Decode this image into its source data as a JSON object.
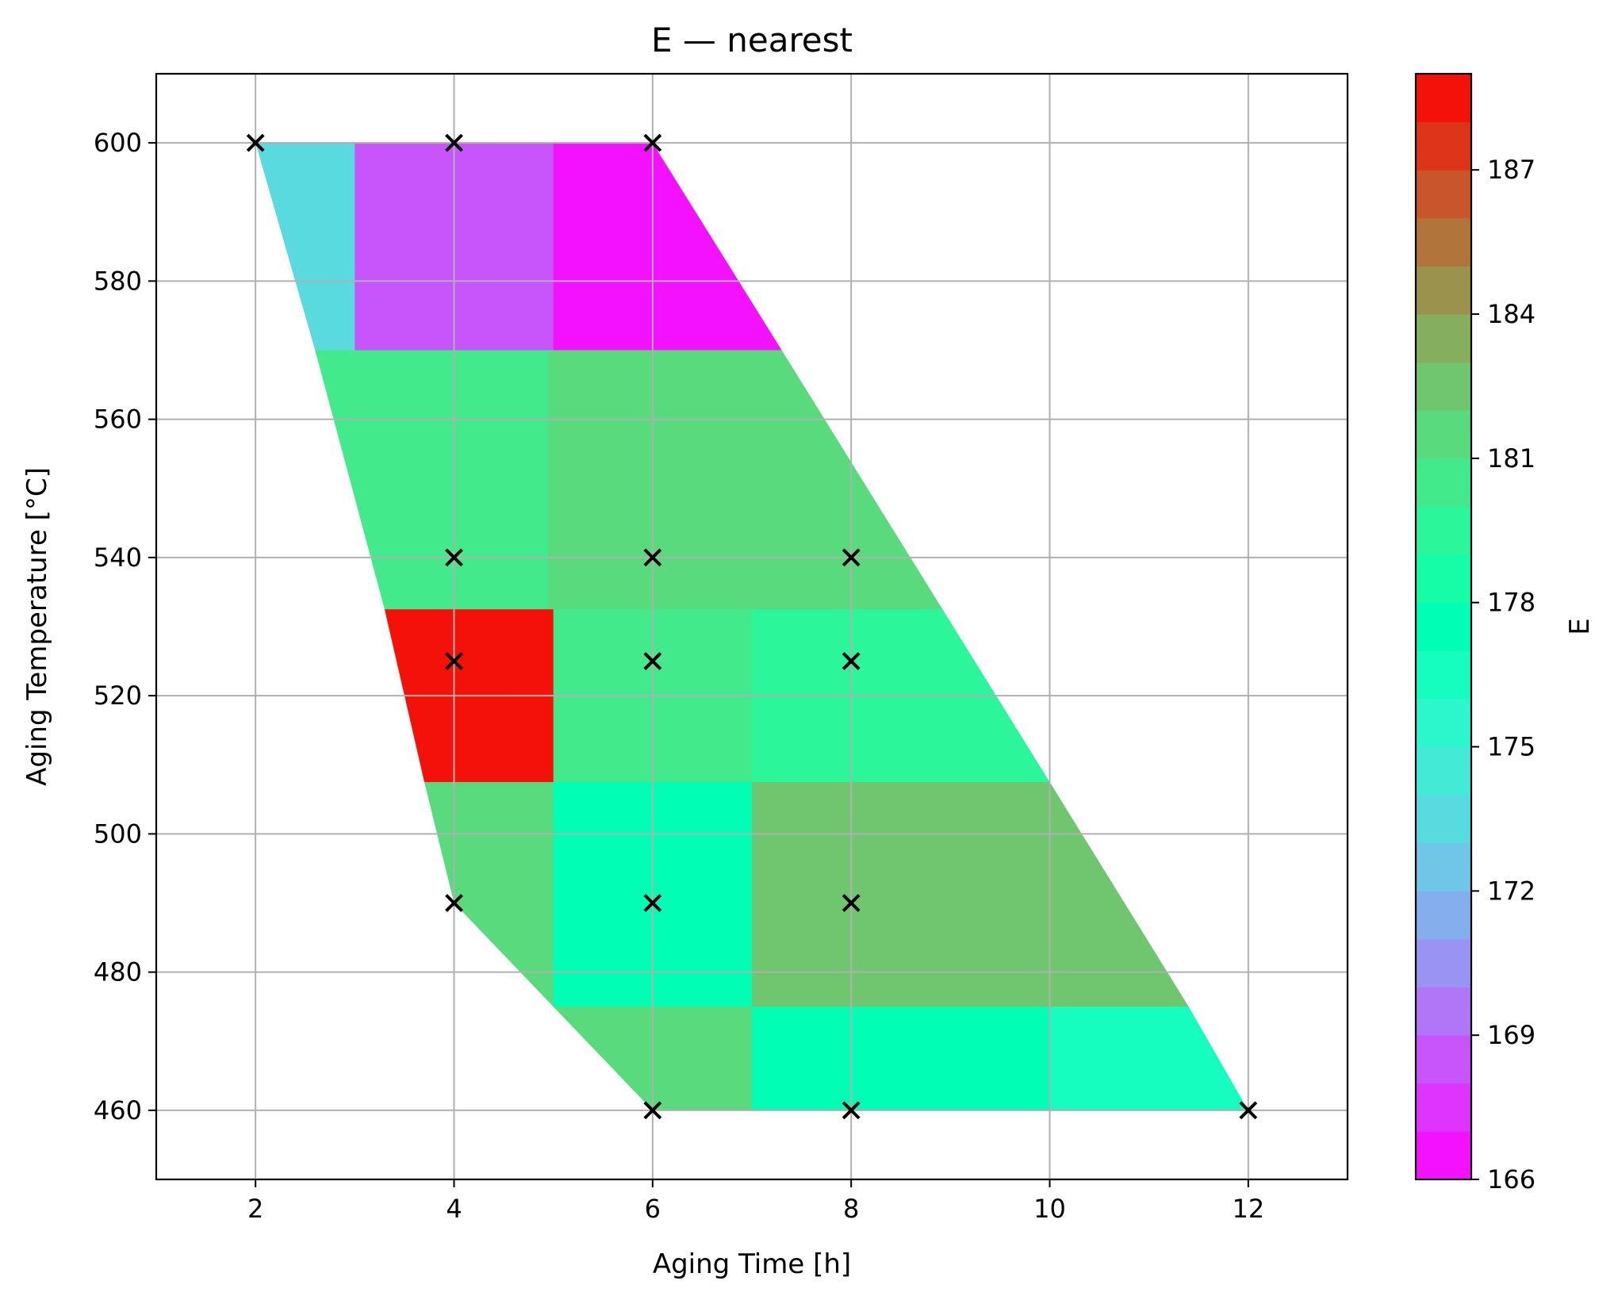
{
  "chart_data": {
    "type": "heatmap",
    "title": "E — nearest",
    "xlabel": "Aging Time [h]",
    "ylabel": "Aging Temperature [°C]",
    "colorbar_label": "E",
    "xlim": [
      1,
      13
    ],
    "ylim": [
      450,
      610
    ],
    "xticks": [
      "2",
      "4",
      "6",
      "8",
      "10",
      "12"
    ],
    "yticks": [
      "460",
      "480",
      "500",
      "520",
      "540",
      "560",
      "580",
      "600"
    ],
    "grid": true,
    "colormap": "rainbow",
    "colorbar_range": [
      166,
      189
    ],
    "colorbar_ticks": [
      "166",
      "169",
      "172",
      "175",
      "178",
      "181",
      "184",
      "187"
    ],
    "domain_polygon": [
      [
        2,
        600
      ],
      [
        6,
        600
      ],
      [
        7.3,
        570
      ],
      [
        10,
        507.5
      ],
      [
        11.4,
        475
      ],
      [
        12,
        460
      ],
      [
        6,
        460
      ],
      [
        4,
        490
      ],
      [
        3.7,
        507.5
      ],
      [
        3.3,
        532.5
      ],
      [
        2.6,
        570
      ]
    ],
    "cells": [
      {
        "x": [
          2,
          3
        ],
        "y": [
          570,
          600
        ],
        "value": 173
      },
      {
        "x": [
          3,
          5
        ],
        "y": [
          570,
          600
        ],
        "value": 168.5
      },
      {
        "x": [
          5,
          7.3
        ],
        "y": [
          570,
          600
        ],
        "value": 166.5
      },
      {
        "x": [
          2.6,
          4.95
        ],
        "y": [
          532.5,
          570
        ],
        "value": 180.5
      },
      {
        "x": [
          4.95,
          9
        ],
        "y": [
          532.5,
          570
        ],
        "value": 181.8
      },
      {
        "x": [
          3.2,
          5
        ],
        "y": [
          507.5,
          532.5
        ],
        "value": 188.5
      },
      {
        "x": [
          5,
          7
        ],
        "y": [
          507.5,
          532.5
        ],
        "value": 180.6
      },
      {
        "x": [
          7,
          10
        ],
        "y": [
          507.5,
          532.5
        ],
        "value": 179.2
      },
      {
        "x": [
          3.7,
          5
        ],
        "y": [
          475,
          507.5
        ],
        "value": 181.8
      },
      {
        "x": [
          5,
          7
        ],
        "y": [
          475,
          507.5
        ],
        "value": 177.6
      },
      {
        "x": [
          7,
          11.4
        ],
        "y": [
          475,
          507.5
        ],
        "value": 182.6
      },
      {
        "x": [
          5,
          7
        ],
        "y": [
          460,
          475
        ],
        "value": 181.8
      },
      {
        "x": [
          7,
          10
        ],
        "y": [
          460,
          475
        ],
        "value": 177.6
      },
      {
        "x": [
          10,
          12
        ],
        "y": [
          460,
          475
        ],
        "value": 176.4
      }
    ],
    "points": [
      {
        "x": 2,
        "y": 600
      },
      {
        "x": 4,
        "y": 600
      },
      {
        "x": 6,
        "y": 600
      },
      {
        "x": 4,
        "y": 540
      },
      {
        "x": 6,
        "y": 540
      },
      {
        "x": 8,
        "y": 540
      },
      {
        "x": 4,
        "y": 525
      },
      {
        "x": 6,
        "y": 525
      },
      {
        "x": 8,
        "y": 525
      },
      {
        "x": 4,
        "y": 490
      },
      {
        "x": 6,
        "y": 490
      },
      {
        "x": 8,
        "y": 490
      },
      {
        "x": 6,
        "y": 460
      },
      {
        "x": 8,
        "y": 460
      },
      {
        "x": 12,
        "y": 460
      }
    ]
  }
}
